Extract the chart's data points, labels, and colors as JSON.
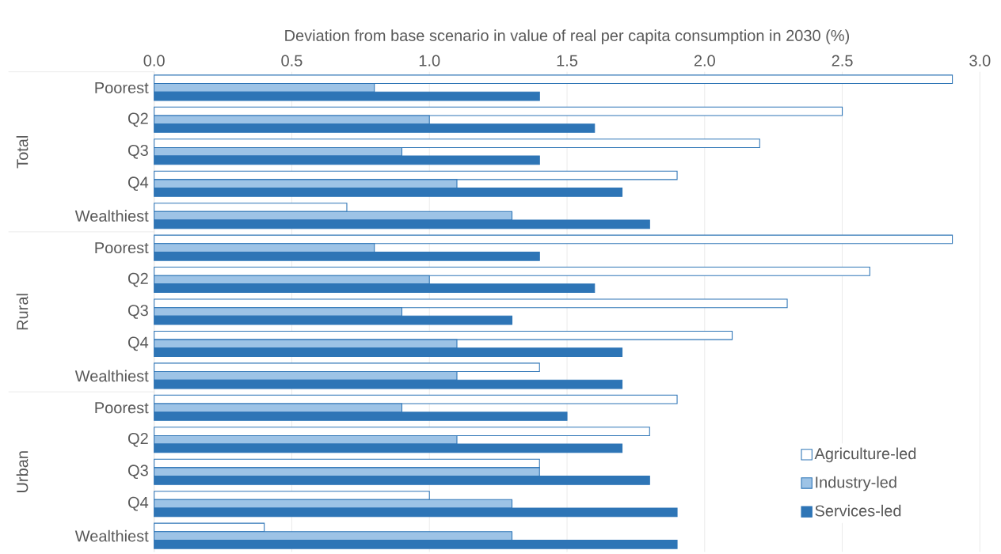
{
  "chart_data": {
    "type": "bar",
    "orientation": "horizontal",
    "xlabel": "Deviation from base scenario in value of real per capita consumption in 2030 (%)",
    "categories": [
      "Poorest",
      "Q2",
      "Q3",
      "Q4",
      "Wealthiest",
      "Poorest",
      "Q2",
      "Q3",
      "Q4",
      "Wealthiest",
      "Poorest",
      "Q2",
      "Q3",
      "Q4",
      "Wealthiest"
    ],
    "annotations": [
      "Total",
      "Rural",
      "Urban"
    ],
    "series": [
      {
        "name": "Agriculture-led",
        "color": "#ffffff",
        "values": [
          2.9,
          2.5,
          2.2,
          1.9,
          0.7,
          2.9,
          2.6,
          2.3,
          2.1,
          1.4,
          1.9,
          1.8,
          1.4,
          1.0,
          0.4
        ]
      },
      {
        "name": "Industry-led",
        "color": "#9dc3e6",
        "values": [
          0.8,
          1.0,
          0.9,
          1.1,
          1.3,
          0.8,
          1.0,
          0.9,
          1.1,
          1.1,
          0.9,
          1.1,
          1.4,
          1.3,
          1.3
        ]
      },
      {
        "name": "Services-led",
        "color": "#2e75b6",
        "values": [
          1.4,
          1.6,
          1.4,
          1.7,
          1.8,
          1.4,
          1.6,
          1.3,
          1.7,
          1.7,
          1.5,
          1.7,
          1.8,
          1.9,
          1.9
        ]
      }
    ],
    "xlim": [
      0,
      3.0
    ],
    "xticks": [
      {
        "value": 0,
        "label": "0.0"
      },
      0.5,
      {
        "value": 1,
        "label": "1.0"
      },
      1.5,
      {
        "value": 2,
        "label": "2.0"
      },
      2.5,
      {
        "value": 3,
        "label": "3.0"
      }
    ],
    "grid": "x",
    "legend": "bottom right"
  }
}
